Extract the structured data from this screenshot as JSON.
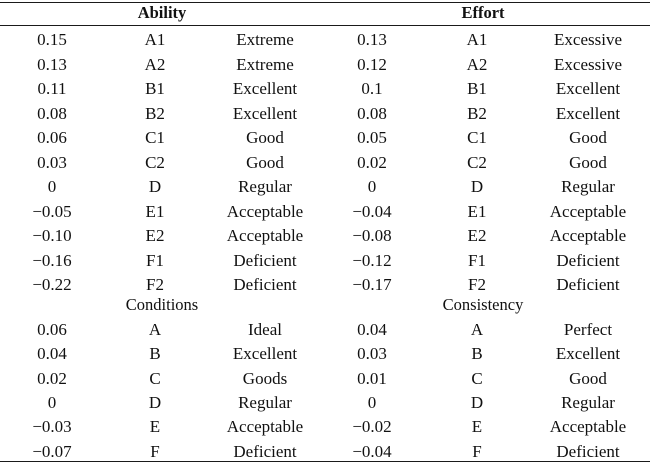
{
  "tables": [
    {
      "left": {
        "title": "Ability",
        "rows": [
          {
            "value": "0.15",
            "grade": "A1",
            "label": "Extreme"
          },
          {
            "value": "0.13",
            "grade": "A2",
            "label": "Extreme"
          },
          {
            "value": "0.11",
            "grade": "B1",
            "label": "Excellent"
          },
          {
            "value": "0.08",
            "grade": "B2",
            "label": "Excellent"
          },
          {
            "value": "0.06",
            "grade": "C1",
            "label": "Good"
          },
          {
            "value": "0.03",
            "grade": "C2",
            "label": "Good"
          },
          {
            "value": "0",
            "grade": "D",
            "label": "Regular"
          },
          {
            "value": "−0.05",
            "grade": "E1",
            "label": "Acceptable"
          },
          {
            "value": "−0.10",
            "grade": "E2",
            "label": "Acceptable"
          },
          {
            "value": "−0.16",
            "grade": "F1",
            "label": "Deficient"
          },
          {
            "value": "−0.22",
            "grade": "F2",
            "label": "Deficient"
          }
        ]
      },
      "right": {
        "title": "Effort",
        "rows": [
          {
            "value": "0.13",
            "grade": "A1",
            "label": "Excessive"
          },
          {
            "value": "0.12",
            "grade": "A2",
            "label": "Excessive"
          },
          {
            "value": "0.1",
            "grade": "B1",
            "label": "Excellent"
          },
          {
            "value": "0.08",
            "grade": "B2",
            "label": "Excellent"
          },
          {
            "value": "0.05",
            "grade": "C1",
            "label": "Good"
          },
          {
            "value": "0.02",
            "grade": "C2",
            "label": "Good"
          },
          {
            "value": "0",
            "grade": "D",
            "label": "Regular"
          },
          {
            "value": "−0.04",
            "grade": "E1",
            "label": "Acceptable"
          },
          {
            "value": "−0.08",
            "grade": "E2",
            "label": "Acceptable"
          },
          {
            "value": "−0.12",
            "grade": "F1",
            "label": "Deficient"
          },
          {
            "value": "−0.17",
            "grade": "F2",
            "label": "Deficient"
          }
        ]
      }
    },
    {
      "left": {
        "title": "Conditions",
        "rows": [
          {
            "value": "0.06",
            "grade": "A",
            "label": "Ideal"
          },
          {
            "value": "0.04",
            "grade": "B",
            "label": "Excellent"
          },
          {
            "value": "0.02",
            "grade": "C",
            "label": "Goods"
          },
          {
            "value": "0",
            "grade": "D",
            "label": "Regular"
          },
          {
            "value": "−0.03",
            "grade": "E",
            "label": "Acceptable"
          },
          {
            "value": "−0.07",
            "grade": "F",
            "label": "Deficient"
          }
        ]
      },
      "right": {
        "title": "Consistency",
        "rows": [
          {
            "value": "0.04",
            "grade": "A",
            "label": "Perfect"
          },
          {
            "value": "0.03",
            "grade": "B",
            "label": "Excellent"
          },
          {
            "value": "0.01",
            "grade": "C",
            "label": "Good"
          },
          {
            "value": "0",
            "grade": "D",
            "label": "Regular"
          },
          {
            "value": "−0.02",
            "grade": "E",
            "label": "Acceptable"
          },
          {
            "value": "−0.04",
            "grade": "F",
            "label": "Deficient"
          }
        ]
      }
    }
  ]
}
